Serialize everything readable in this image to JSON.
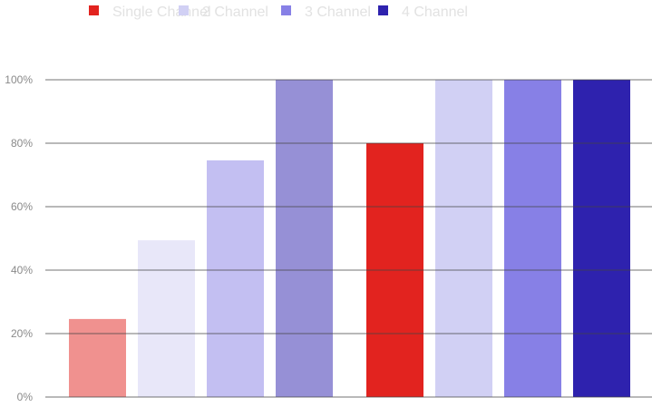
{
  "chart_data": {
    "type": "bar",
    "title": "",
    "xlabel": "",
    "ylabel": "",
    "ylim": [
      0,
      100
    ],
    "yticks": [
      "0%",
      "20%",
      "40%",
      "60%",
      "80%",
      "100%"
    ],
    "grid": true,
    "legend_placement": "top",
    "groups": [
      {
        "faded": true,
        "values": [
          24.6,
          49.4,
          74.6,
          100
        ]
      },
      {
        "faded": false,
        "values": [
          80,
          100,
          100,
          100
        ]
      }
    ],
    "series": [
      {
        "name": "Single Channel",
        "color": "#e2231f"
      },
      {
        "name": "2 Channel",
        "color": "#d1d0f4"
      },
      {
        "name": "3 Channel",
        "color": "#8780e6"
      },
      {
        "name": "4 Channel",
        "color": "#2e22ae"
      }
    ]
  }
}
